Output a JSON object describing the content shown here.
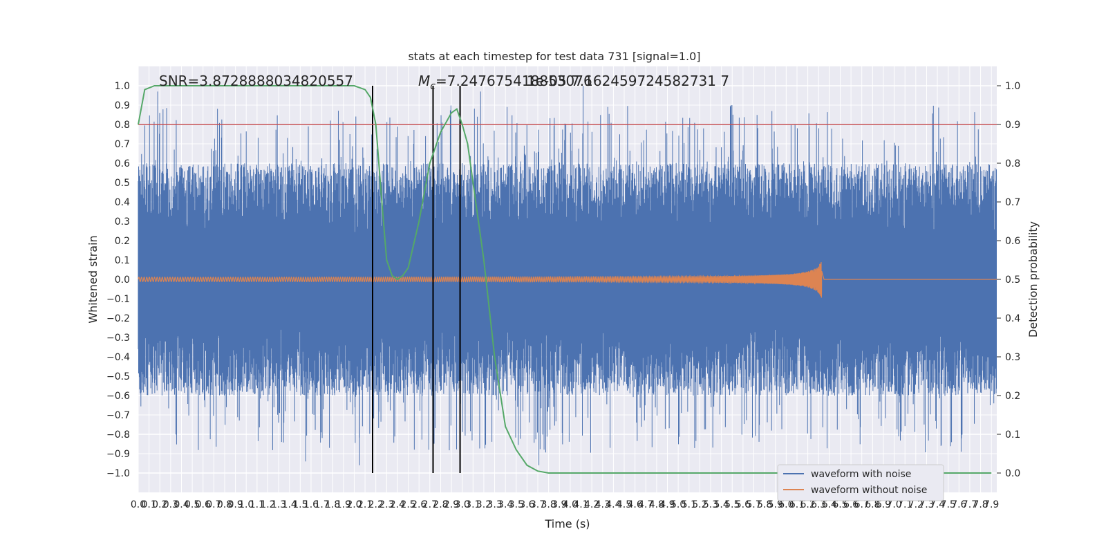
{
  "chart_data": {
    "type": "line",
    "title": "stats at each timestep for test data 731 [signal=1.0]",
    "xlabel": "Time (s)",
    "ylabel": "Whitened strain",
    "y2label": "Detection probability",
    "xlim": [
      0.0,
      7.95
    ],
    "ylim": [
      -1.1,
      1.1
    ],
    "y2lim": [
      -0.05,
      1.05
    ],
    "x_ticks": [
      "0.0",
      "0.1",
      "0.2",
      "0.3",
      "0.4",
      "0.5",
      "0.6",
      "0.7",
      "0.8",
      "0.9",
      "1.0",
      "1.1",
      "1.2",
      "1.3",
      "1.4",
      "1.5",
      "1.6",
      "1.7",
      "1.8",
      "1.9",
      "2.0",
      "2.1",
      "2.2",
      "2.3",
      "2.4",
      "2.5",
      "2.6",
      "2.7",
      "2.8",
      "2.9",
      "3.0",
      "3.1",
      "3.2",
      "3.3",
      "3.4",
      "3.5",
      "3.6",
      "3.7",
      "3.8",
      "3.9",
      "4.0",
      "4.1",
      "4.2",
      "4.3",
      "4.4",
      "4.5",
      "4.6",
      "4.7",
      "4.8",
      "4.9",
      "5.0",
      "5.1",
      "5.2",
      "5.3",
      "5.4",
      "5.5",
      "5.6",
      "5.7",
      "5.8",
      "5.9",
      "6.0",
      "6.1",
      "6.2",
      "6.3",
      "6.4",
      "6.5",
      "6.6",
      "6.7",
      "6.8",
      "6.9",
      "7.0",
      "7.1",
      "7.2",
      "7.3",
      "7.4",
      "7.5",
      "7.6",
      "7.7",
      "7.8",
      "7.9"
    ],
    "y_ticks": [
      "1.0",
      "0.9",
      "0.8",
      "0.7",
      "0.6",
      "0.5",
      "0.4",
      "0.3",
      "0.2",
      "0.1",
      "0.0",
      "−0.1",
      "−0.2",
      "−0.3",
      "−0.4",
      "−0.5",
      "−0.6",
      "−0.7",
      "−0.8",
      "−0.9",
      "−1.0"
    ],
    "y2_ticks": [
      "1.0",
      "0.9",
      "0.8",
      "0.7",
      "0.6",
      "0.5",
      "0.4",
      "0.3",
      "0.2",
      "0.1",
      "0.0"
    ],
    "grid": true,
    "legend_position": "lower-right",
    "series": [
      {
        "name": "waveform with noise",
        "color": "#4c72b0",
        "style": "dense-noise",
        "band_extent": [
          -0.6,
          0.6
        ],
        "spike_peaks": [
          [
            0.18,
            0.97
          ],
          [
            1.78,
            0.82
          ],
          [
            3.14,
            0.84
          ],
          [
            3.17,
            0.97
          ],
          [
            4.12,
            1.0
          ],
          [
            3.71,
            -0.96
          ],
          [
            1.55,
            -0.94
          ],
          [
            2.05,
            -0.96
          ],
          [
            7.62,
            -0.89
          ]
        ]
      },
      {
        "name": "waveform without noise",
        "color": "#dd8452",
        "style": "chirp",
        "end_time": 6.33,
        "amplitude_start": 0.01,
        "amplitude_end": 0.1
      }
    ],
    "detection_probability": {
      "color": "#55a868",
      "axis": "right",
      "x": [
        0.0,
        0.06,
        0.15,
        0.3,
        1.5,
        2.0,
        2.1,
        2.15,
        2.2,
        2.25,
        2.3,
        2.35,
        2.4,
        2.45,
        2.5,
        2.6,
        2.7,
        2.8,
        2.9,
        2.95,
        3.0,
        3.05,
        3.1,
        3.2,
        3.3,
        3.4,
        3.5,
        3.6,
        3.7,
        3.8,
        4.0,
        5.0,
        6.0,
        7.0,
        7.9
      ],
      "y": [
        0.9,
        0.99,
        1.0,
        1.0,
        1.0,
        1.0,
        0.99,
        0.97,
        0.9,
        0.72,
        0.55,
        0.51,
        0.5,
        0.51,
        0.53,
        0.65,
        0.8,
        0.88,
        0.93,
        0.94,
        0.9,
        0.85,
        0.75,
        0.55,
        0.3,
        0.12,
        0.06,
        0.02,
        0.005,
        0.0,
        0.0,
        0.0,
        0.0,
        0.0,
        0.0
      ]
    },
    "threshold_line": {
      "color": "#c44e52",
      "y2": 0.9
    },
    "vertical_markers": {
      "color": "#000000",
      "x": [
        2.17,
        2.73,
        2.98
      ],
      "y_range": [
        -1.0,
        1.0
      ]
    },
    "annotations": {
      "snr": "SNR=3.8728888034820557",
      "mc_symbol": "M",
      "mc_subscript": "c",
      "mc_value": "=7.247675418853076",
      "overlap": "1e-05  7.162459724582731 7"
    },
    "legend": [
      {
        "label": "waveform with noise",
        "color": "#4c72b0"
      },
      {
        "label": "waveform without noise",
        "color": "#dd8452"
      }
    ]
  }
}
